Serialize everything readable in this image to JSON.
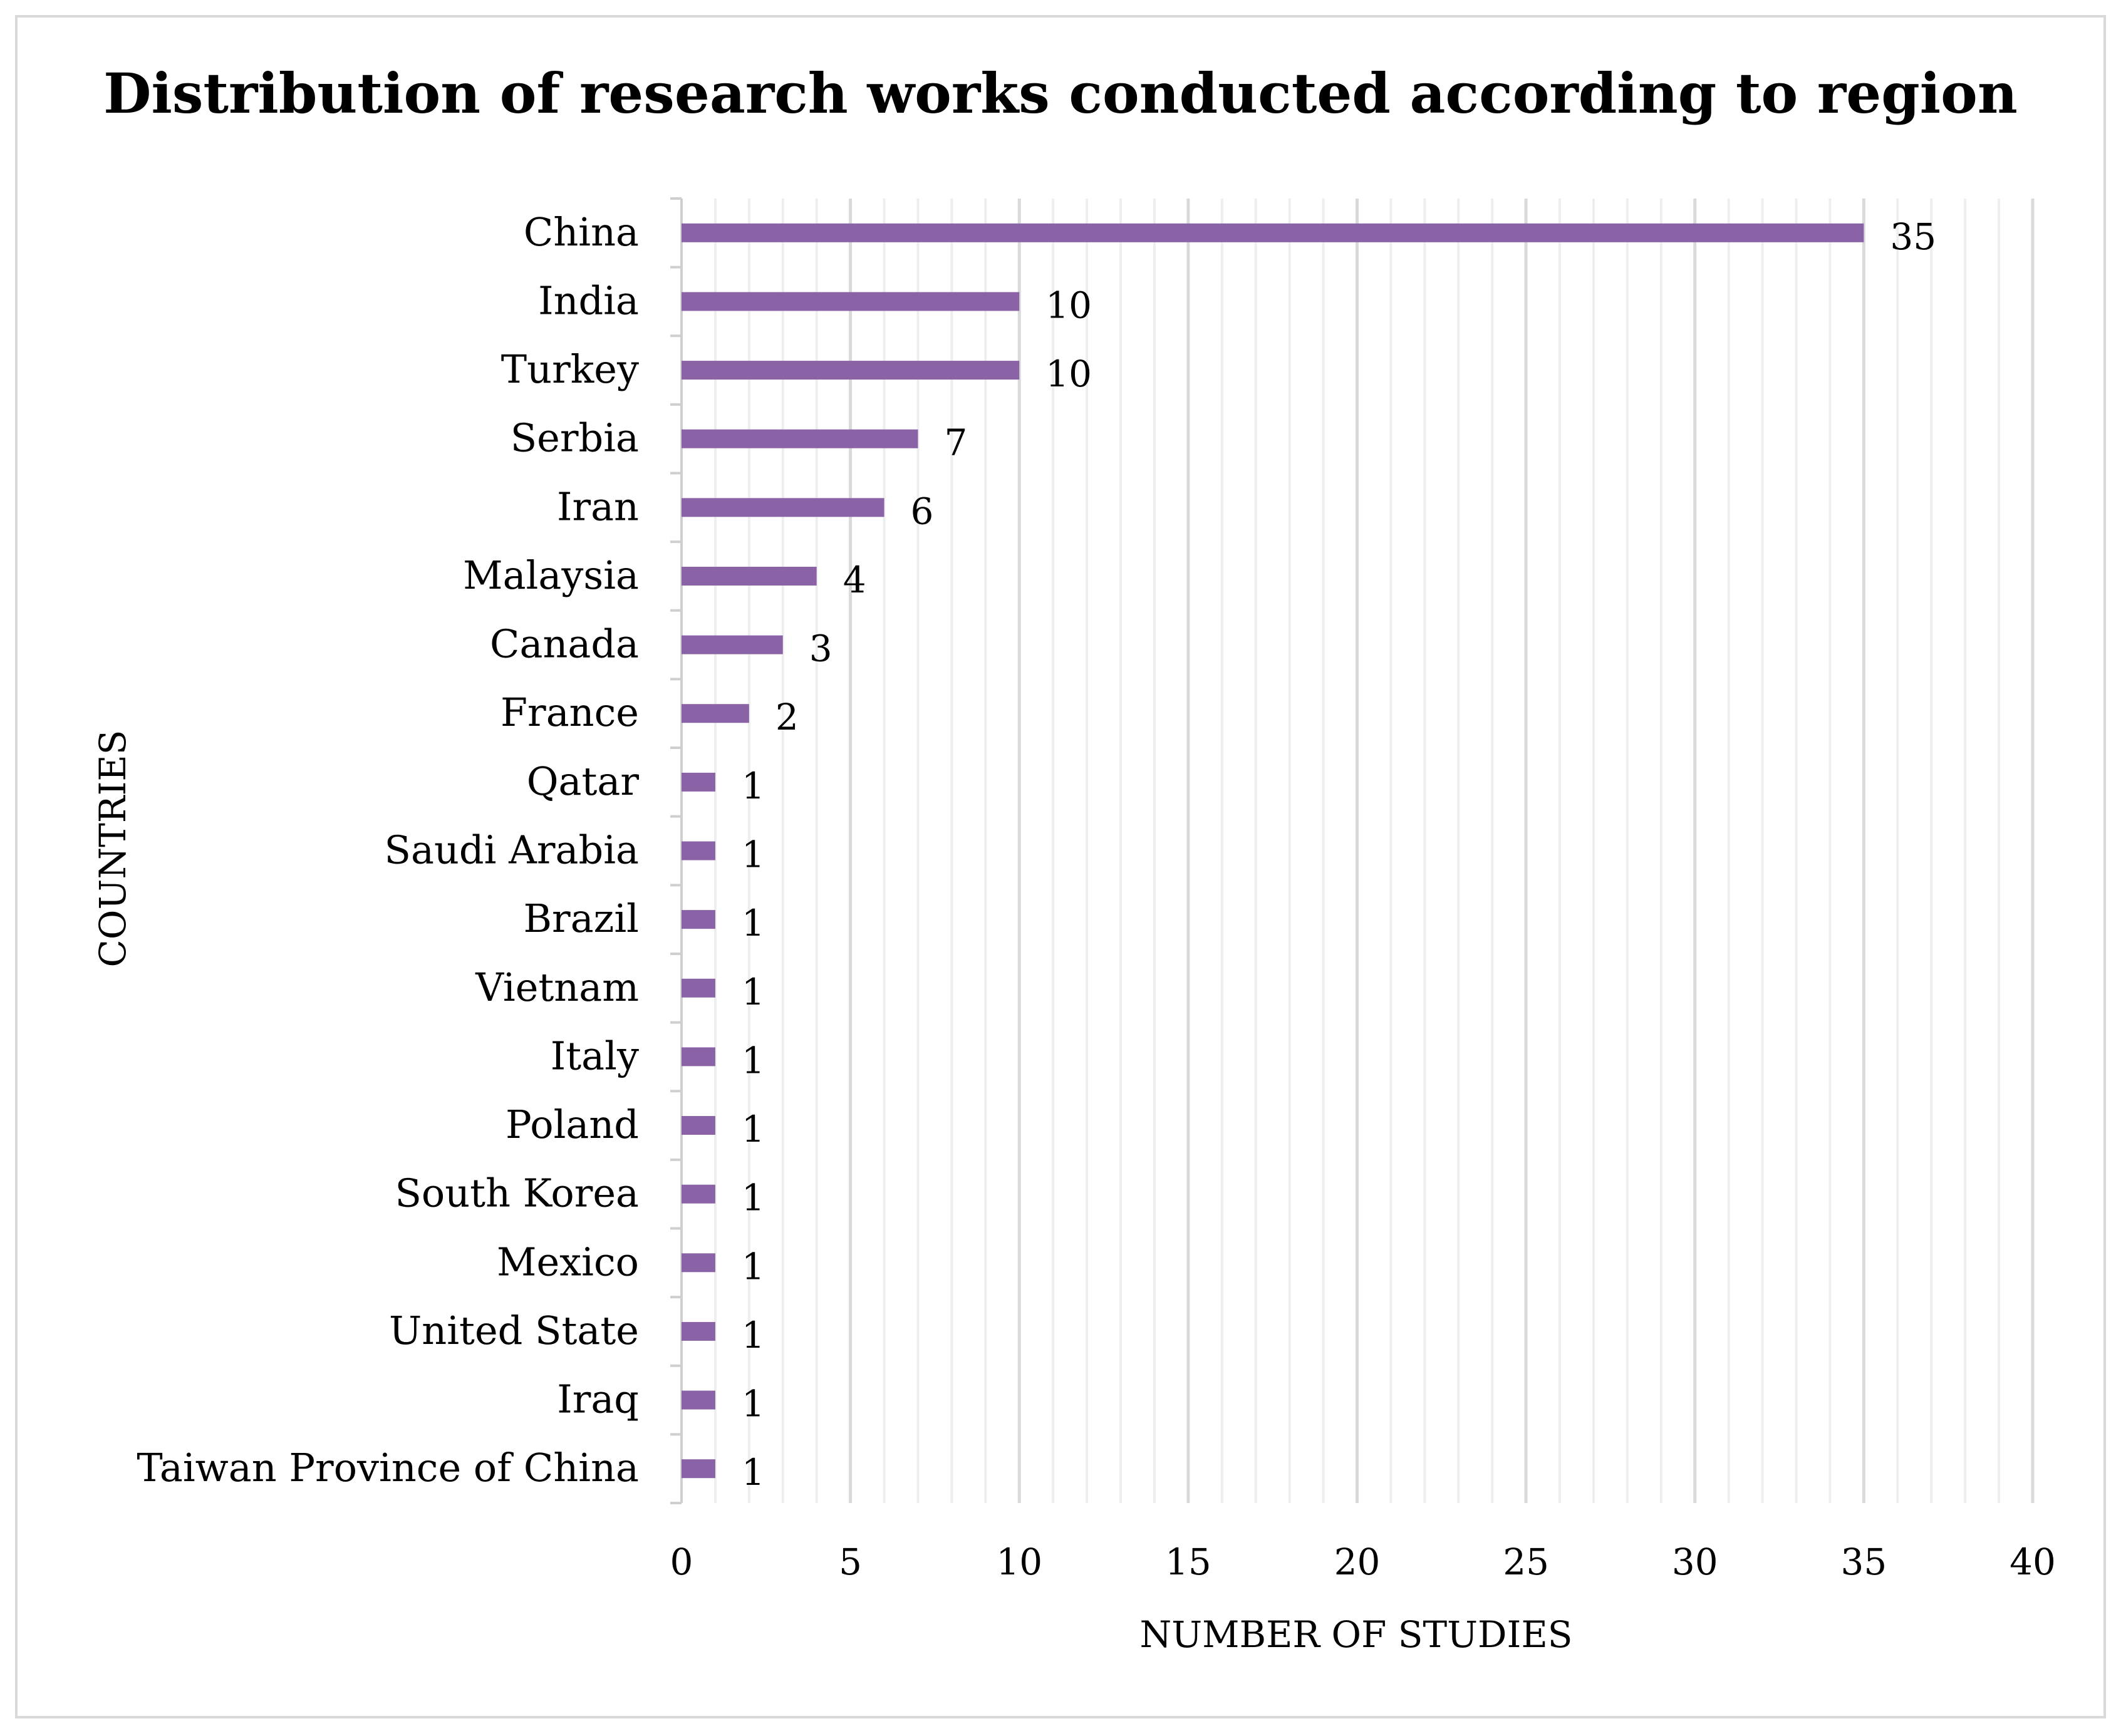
{
  "chart_data": {
    "type": "bar",
    "orientation": "horizontal",
    "title": "Distribution of research works conducted according to region",
    "xlabel": "NUMBER OF STUDIES",
    "ylabel": "COUNTRIES",
    "categories": [
      "China",
      "India",
      "Turkey",
      "Serbia",
      "Iran",
      "Malaysia",
      "Canada",
      "France",
      "Qatar",
      "Saudi Arabia",
      "Brazil",
      "Vietnam",
      "Italy",
      "Poland",
      "South Korea",
      "Mexico",
      "United State",
      "Iraq",
      "Taiwan Province of China"
    ],
    "values": [
      35,
      10,
      10,
      7,
      6,
      4,
      3,
      2,
      1,
      1,
      1,
      1,
      1,
      1,
      1,
      1,
      1,
      1,
      1
    ],
    "xlim": [
      0,
      40
    ],
    "xticks": [
      0,
      5,
      10,
      15,
      20,
      25,
      30,
      35,
      40
    ],
    "grid": "vertical",
    "data_labels": true,
    "bar_color": "#8a63a6",
    "major_grid_color": "#d9d9d9",
    "minor_grid_color": "#eeeeee",
    "axis_color": "#cfcfcf",
    "frame_color": "#d9d9d9"
  }
}
